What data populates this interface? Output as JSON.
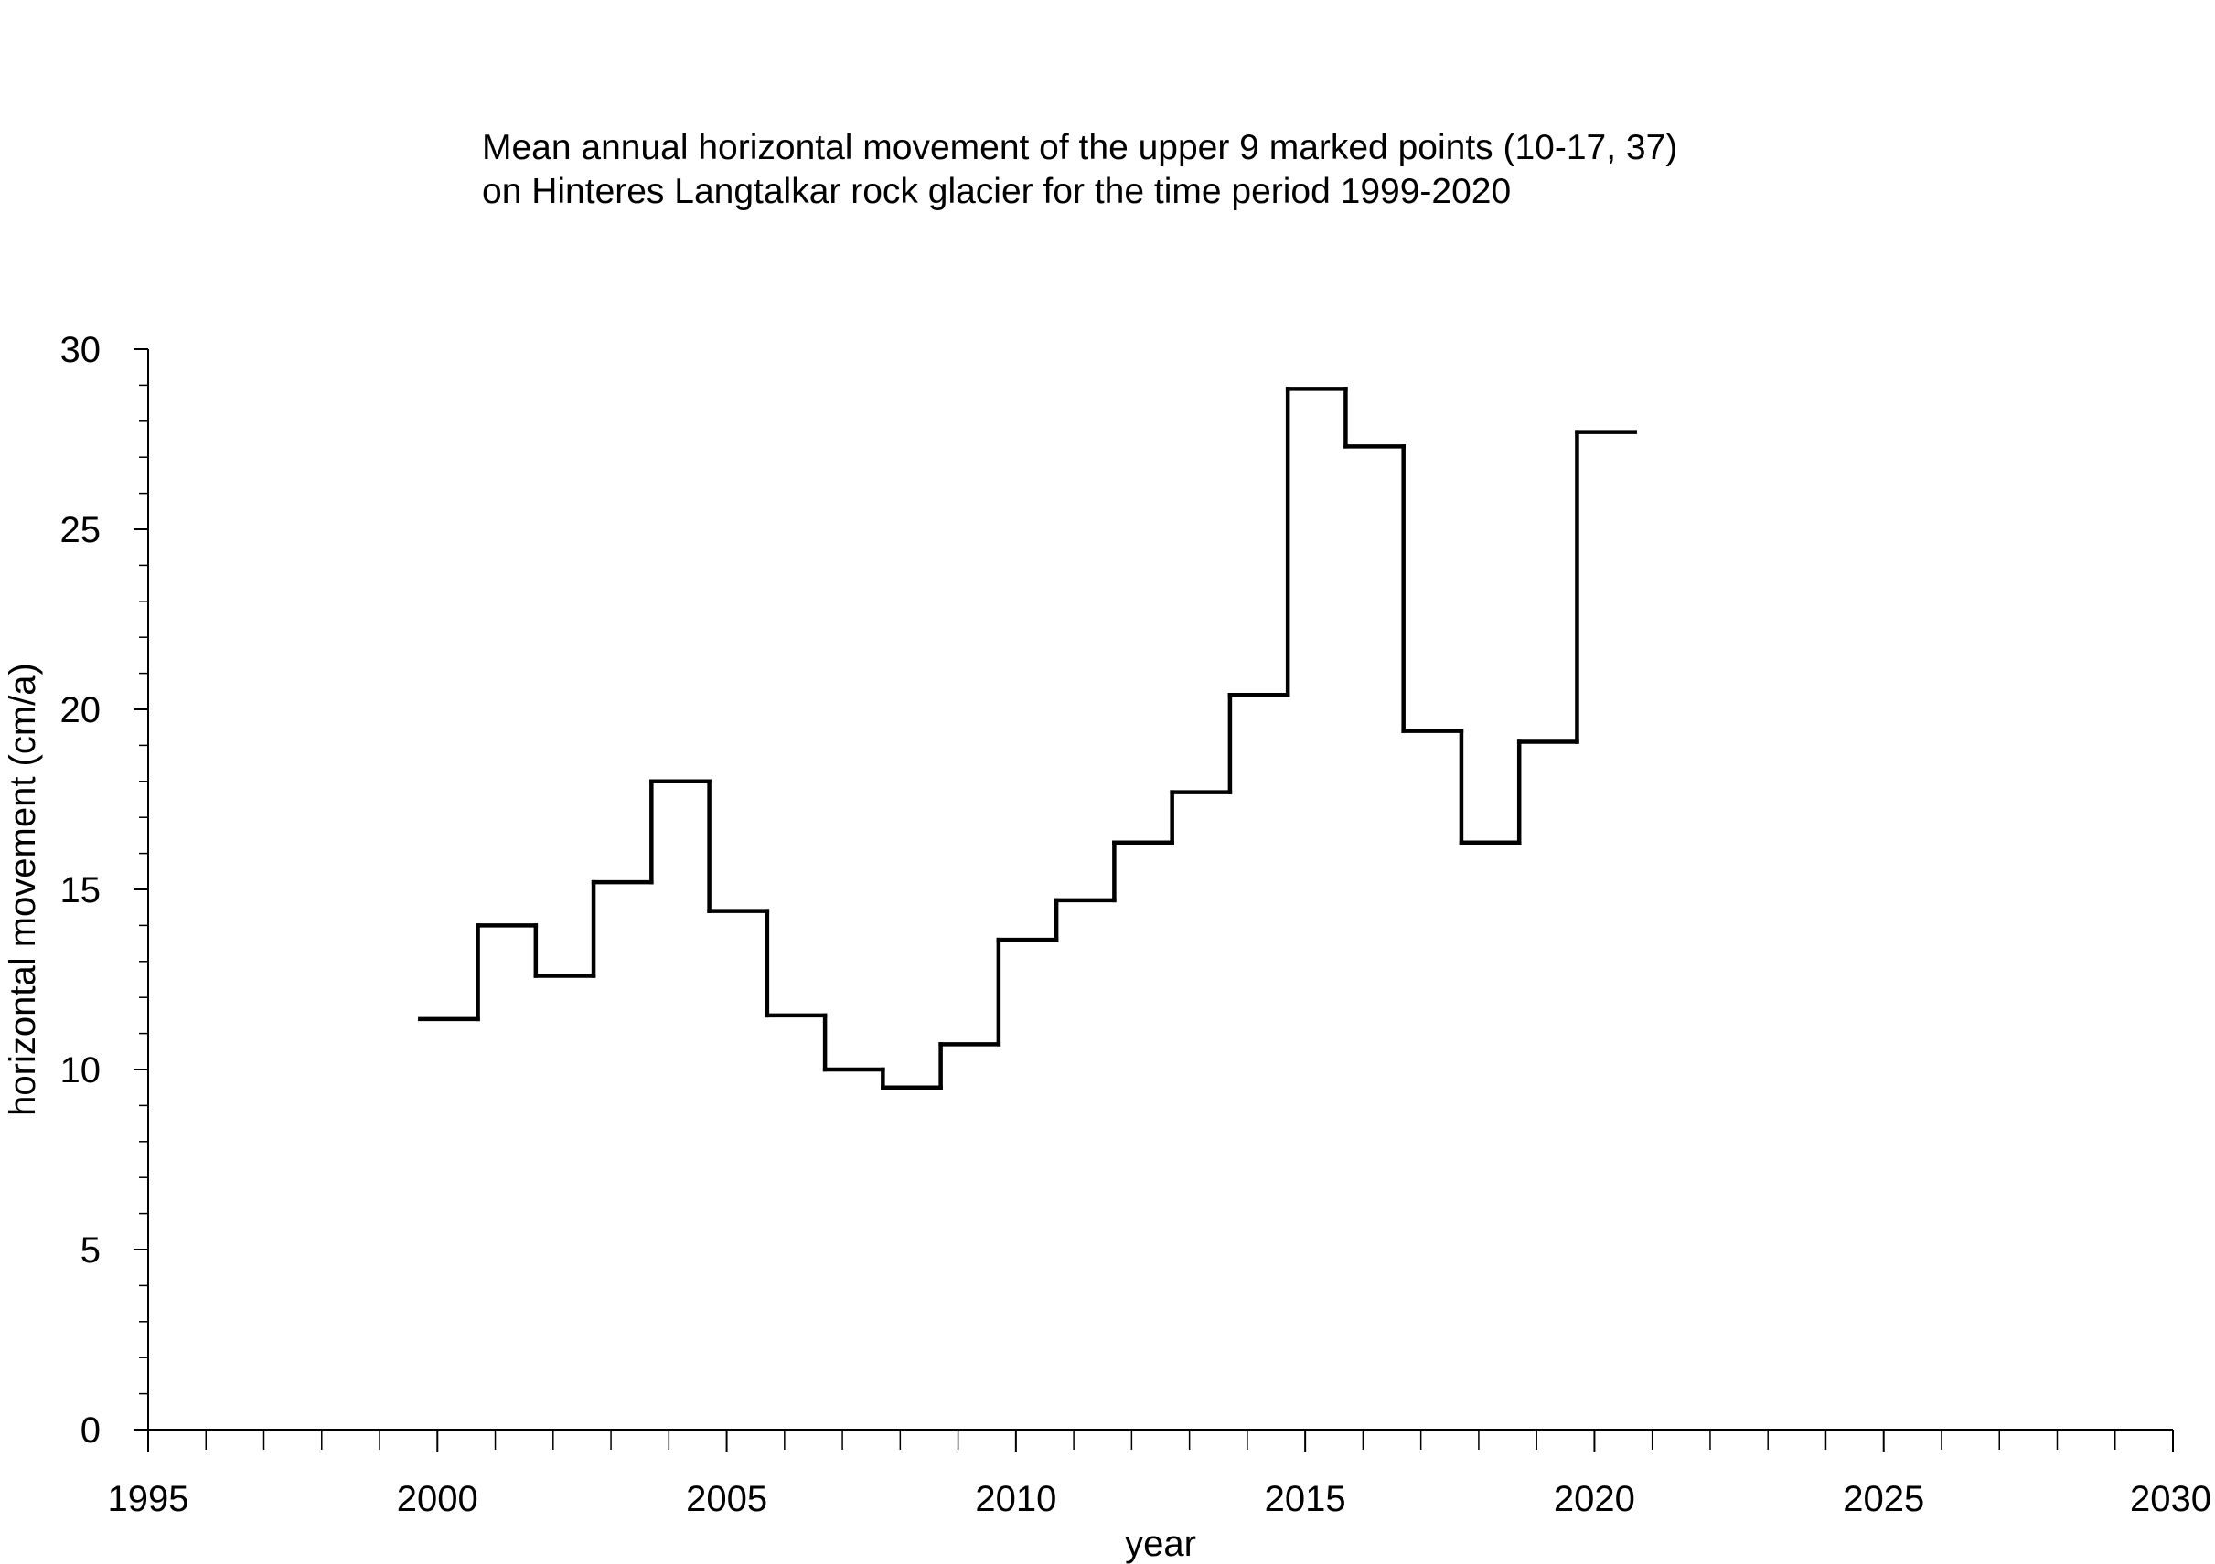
{
  "chart_data": {
    "type": "line",
    "step": true,
    "title_lines": [
      "Mean annual horizontal movement of the upper 9 marked points (10-17, 37)",
      "on Hinteres Langtalkar rock glacier for the time period 1999-2020"
    ],
    "xlabel": "year",
    "ylabel": "horizontal movement (cm/a)",
    "xlim": [
      1995,
      2030
    ],
    "ylim": [
      0,
      30
    ],
    "x_ticks": [
      "1995",
      "2000",
      "2005",
      "2010",
      "2015",
      "2020",
      "2025",
      "2030"
    ],
    "y_ticks": [
      "0",
      "5",
      "10",
      "15",
      "20",
      "25",
      "30"
    ],
    "x_minor_step": 1,
    "y_minor_step": 1,
    "grid": false,
    "line_color": "#000000",
    "series": [
      {
        "steps": [
          {
            "start": 1999.7,
            "end": 2000.7,
            "value": 11.4
          },
          {
            "start": 2000.7,
            "end": 2001.7,
            "value": 14.0
          },
          {
            "start": 2001.7,
            "end": 2002.7,
            "value": 12.6
          },
          {
            "start": 2002.7,
            "end": 2003.7,
            "value": 15.2
          },
          {
            "start": 2003.7,
            "end": 2004.7,
            "value": 18.0
          },
          {
            "start": 2004.7,
            "end": 2005.7,
            "value": 14.4
          },
          {
            "start": 2005.7,
            "end": 2006.7,
            "value": 11.5
          },
          {
            "start": 2006.7,
            "end": 2007.7,
            "value": 10.0
          },
          {
            "start": 2007.7,
            "end": 2008.7,
            "value": 9.5
          },
          {
            "start": 2008.7,
            "end": 2009.7,
            "value": 10.7
          },
          {
            "start": 2009.7,
            "end": 2010.7,
            "value": 13.6
          },
          {
            "start": 2010.7,
            "end": 2011.7,
            "value": 14.7
          },
          {
            "start": 2011.7,
            "end": 2012.7,
            "value": 16.3
          },
          {
            "start": 2012.7,
            "end": 2013.7,
            "value": 17.7
          },
          {
            "start": 2013.7,
            "end": 2014.7,
            "value": 20.4
          },
          {
            "start": 2014.7,
            "end": 2015.7,
            "value": 28.9
          },
          {
            "start": 2015.7,
            "end": 2016.7,
            "value": 27.3
          },
          {
            "start": 2016.7,
            "end": 2017.7,
            "value": 19.4
          },
          {
            "start": 2017.7,
            "end": 2018.7,
            "value": 16.3
          },
          {
            "start": 2018.7,
            "end": 2019.7,
            "value": 19.1
          },
          {
            "start": 2019.7,
            "end": 2020.7,
            "value": 27.7
          }
        ]
      }
    ]
  }
}
